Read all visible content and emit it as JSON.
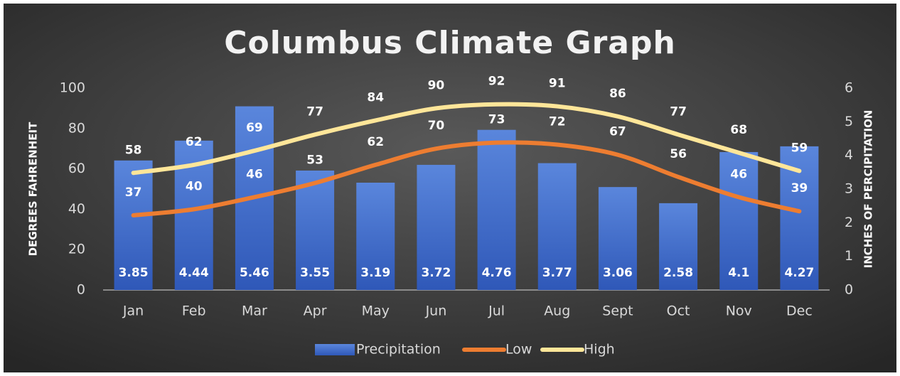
{
  "chart_data": {
    "type": "bar",
    "title": "Columbus Climate Graph",
    "categories": [
      "Jan",
      "Feb",
      "Mar",
      "Apr",
      "May",
      "Jun",
      "Jul",
      "Aug",
      "Sept",
      "Oct",
      "Nov",
      "Dec"
    ],
    "series": [
      {
        "name": "Precipitation",
        "type": "bar",
        "axis": "y2",
        "color": "#4472c4",
        "values": [
          3.85,
          4.44,
          5.46,
          3.55,
          3.19,
          3.72,
          4.76,
          3.77,
          3.06,
          2.58,
          4.1,
          4.27
        ]
      },
      {
        "name": "Low",
        "type": "line",
        "color": "#ed7d31",
        "values": [
          37,
          40,
          46,
          53,
          62,
          70,
          73,
          72,
          67,
          56,
          46,
          39
        ]
      },
      {
        "name": "High",
        "type": "line",
        "color": "#ffe699",
        "values": [
          58,
          62,
          69,
          77,
          84,
          90,
          92,
          91,
          86,
          77,
          68,
          59
        ]
      }
    ],
    "ylabel": "DEGREES FAHRENHEIT",
    "y2label": "INCHES OF PERCIPITATION",
    "ylim": [
      0,
      100
    ],
    "yticks": [
      0,
      20,
      40,
      60,
      80,
      100
    ],
    "y2lim": [
      0,
      6
    ],
    "y2ticks": [
      0,
      1,
      2,
      3,
      4,
      5,
      6
    ],
    "legend": "bottom"
  }
}
